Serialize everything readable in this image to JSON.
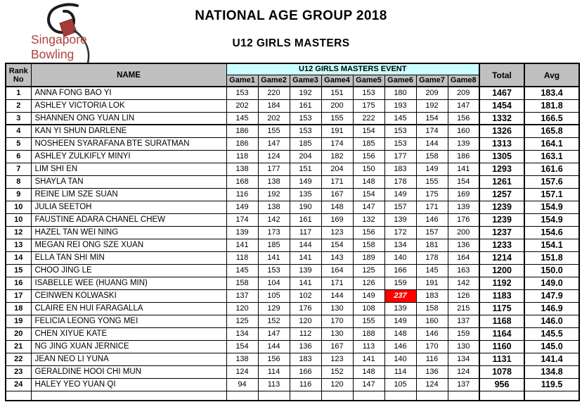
{
  "header": {
    "title": "NATIONAL AGE GROUP 2018",
    "subtitle": "U12 GIRLS MASTERS"
  },
  "logo": {
    "line1": "Singapore",
    "line2": "Bowling",
    "icon": "bowling-pin-sketch-icon"
  },
  "colors": {
    "header_gray": "#c0c0c0",
    "event_cyan": "#ccffff",
    "highlight_red": "#ff0000",
    "highlight_text": "#ffffff",
    "logo_red": "#b0413b",
    "border": "#000000"
  },
  "table": {
    "rank_header_line1": "Rank",
    "rank_header_line2": "No",
    "name_header": "NAME",
    "event_header": "U12 GIRLS MASTERS EVENT",
    "game_headers": [
      "Game1",
      "Game2",
      "Game3",
      "Game4",
      "Game5",
      "Game6",
      "Game7",
      "Game8"
    ],
    "total_header": "Total",
    "avg_header": "Avg",
    "rows": [
      {
        "rank": "1",
        "name": "ANNA FONG BAO YI",
        "games": [
          153,
          220,
          192,
          151,
          153,
          180,
          209,
          209
        ],
        "total": "1467",
        "avg": "183.4"
      },
      {
        "rank": "2",
        "name": "ASHLEY VICTORIA LOK",
        "games": [
          202,
          184,
          161,
          200,
          175,
          193,
          192,
          147
        ],
        "total": "1454",
        "avg": "181.8"
      },
      {
        "rank": "3",
        "name": "SHANNEN ONG YUAN LIN",
        "games": [
          145,
          202,
          153,
          155,
          222,
          145,
          154,
          156
        ],
        "total": "1332",
        "avg": "166.5"
      },
      {
        "rank": "4",
        "name": "KAN YI SHUN DARLENE",
        "games": [
          186,
          155,
          153,
          191,
          154,
          153,
          174,
          160
        ],
        "total": "1326",
        "avg": "165.8"
      },
      {
        "rank": "5",
        "name": "NOSHEEN SYARAFANA BTE SURATMAN",
        "games": [
          186,
          147,
          185,
          174,
          185,
          153,
          144,
          139
        ],
        "total": "1313",
        "avg": "164.1"
      },
      {
        "rank": "6",
        "name": "ASHLEY ZULKIFLY MINYI",
        "games": [
          118,
          124,
          204,
          182,
          156,
          177,
          158,
          186
        ],
        "total": "1305",
        "avg": "163.1"
      },
      {
        "rank": "7",
        "name": "LIM SHI EN",
        "games": [
          138,
          177,
          151,
          204,
          150,
          183,
          149,
          141
        ],
        "total": "1293",
        "avg": "161.6"
      },
      {
        "rank": "8",
        "name": "SHAYLA TAN",
        "games": [
          168,
          138,
          149,
          171,
          148,
          178,
          155,
          154
        ],
        "total": "1261",
        "avg": "157.6"
      },
      {
        "rank": "9",
        "name": "REINE LIM SZE SUAN",
        "games": [
          116,
          192,
          135,
          167,
          154,
          149,
          175,
          169
        ],
        "total": "1257",
        "avg": "157.1"
      },
      {
        "rank": "10",
        "name": "JULIA SEETOH",
        "games": [
          149,
          138,
          190,
          148,
          147,
          157,
          171,
          139
        ],
        "total": "1239",
        "avg": "154.9"
      },
      {
        "rank": "10",
        "name": "FAUSTINE ADARA CHANEL CHEW",
        "games": [
          174,
          142,
          161,
          169,
          132,
          139,
          146,
          176
        ],
        "total": "1239",
        "avg": "154.9"
      },
      {
        "rank": "12",
        "name": "HAZEL TAN WEI NING",
        "games": [
          139,
          173,
          117,
          123,
          156,
          172,
          157,
          200
        ],
        "total": "1237",
        "avg": "154.6"
      },
      {
        "rank": "13",
        "name": "MEGAN REI ONG SZE XUAN",
        "games": [
          141,
          185,
          144,
          154,
          158,
          134,
          181,
          136
        ],
        "total": "1233",
        "avg": "154.1"
      },
      {
        "rank": "14",
        "name": "ELLA TAN SHI MIN",
        "games": [
          118,
          141,
          141,
          143,
          189,
          140,
          178,
          164
        ],
        "total": "1214",
        "avg": "151.8"
      },
      {
        "rank": "15",
        "name": "CHOO JING LE",
        "games": [
          145,
          153,
          139,
          164,
          125,
          166,
          145,
          163
        ],
        "total": "1200",
        "avg": "150.0"
      },
      {
        "rank": "16",
        "name": "ISABELLE WEE (HUANG MIN)",
        "games": [
          158,
          104,
          141,
          171,
          126,
          159,
          191,
          142
        ],
        "total": "1192",
        "avg": "149.0"
      },
      {
        "rank": "17",
        "name": "CEINWEN KOLWASKI",
        "games": [
          137,
          105,
          102,
          144,
          149,
          237,
          183,
          126
        ],
        "total": "1183",
        "avg": "147.9",
        "highlight_game_index": 5
      },
      {
        "rank": "18",
        "name": "CLAIRE EN HUI FARAGALLA",
        "games": [
          120,
          129,
          176,
          130,
          108,
          139,
          158,
          215
        ],
        "total": "1175",
        "avg": "146.9"
      },
      {
        "rank": "19",
        "name": "FELICIA LEONG YONG MEI",
        "games": [
          125,
          152,
          120,
          170,
          155,
          149,
          160,
          137
        ],
        "total": "1168",
        "avg": "146.0"
      },
      {
        "rank": "20",
        "name": "CHEN XIYUE KATE",
        "games": [
          134,
          147,
          112,
          130,
          188,
          148,
          146,
          159
        ],
        "total": "1164",
        "avg": "145.5"
      },
      {
        "rank": "21",
        "name": "NG JING XUAN JERNICE",
        "games": [
          154,
          144,
          136,
          167,
          113,
          146,
          170,
          130
        ],
        "total": "1160",
        "avg": "145.0"
      },
      {
        "rank": "22",
        "name": "JEAN NEO LI YUNA",
        "games": [
          138,
          156,
          183,
          123,
          141,
          140,
          116,
          134
        ],
        "total": "1131",
        "avg": "141.4"
      },
      {
        "rank": "23",
        "name": "GERALDINE HOOI CHI MUN",
        "games": [
          124,
          114,
          166,
          152,
          148,
          114,
          136,
          124
        ],
        "total": "1078",
        "avg": "134.8"
      },
      {
        "rank": "24",
        "name": "HALEY YEO YUAN QI",
        "games": [
          94,
          113,
          116,
          120,
          147,
          105,
          124,
          137
        ],
        "total": "956",
        "avg": "119.5"
      }
    ]
  }
}
